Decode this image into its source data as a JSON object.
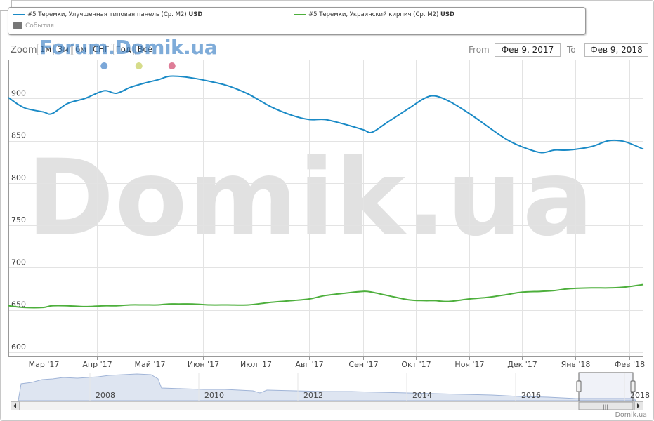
{
  "legend": {
    "series1_label": "#5 Теремки, Улучшенная типовая панель (Ср. М2)",
    "series1_unit": "USD",
    "series2_label": "#5 Теремки, Украинский кирпич (Ср. М2)",
    "series2_unit": "USD",
    "events_label": "События"
  },
  "zoom": {
    "label": "Zoom",
    "buttons": [
      "1м",
      "3м",
      "6м",
      "СНГ",
      "Год",
      "Всё"
    ]
  },
  "watermark_small": "Forum.Domik.ua",
  "watermark_big": "Domik.ua",
  "range": {
    "from_label": "From",
    "from_value": "Фев 9, 2017",
    "to_label": "To",
    "to_value": "Фев 9, 2018"
  },
  "credit": "Domik.ua",
  "colors": {
    "series1": "#1a8ac6",
    "series2": "#4daf3c",
    "grid": "#e3e3e3",
    "event_dots": [
      "#7ba7d8",
      "#d6dc8a",
      "#de7d97"
    ]
  },
  "navigator": {
    "year_labels": [
      "2008",
      "2010",
      "2012",
      "2014",
      "2016",
      "2018"
    ]
  },
  "chart_data": {
    "type": "line",
    "x": [
      "2017-02-09",
      "2017-02-18",
      "2017-03-01",
      "2017-03-06",
      "2017-03-15",
      "2017-03-25",
      "2017-04-05",
      "2017-04-12",
      "2017-04-20",
      "2017-04-28",
      "2017-05-06",
      "2017-05-12",
      "2017-05-18",
      "2017-05-26",
      "2017-06-05",
      "2017-06-15",
      "2017-06-27",
      "2017-07-10",
      "2017-07-22",
      "2017-08-01",
      "2017-08-10",
      "2017-08-22",
      "2017-09-01",
      "2017-09-06",
      "2017-09-15",
      "2017-09-27",
      "2017-10-06",
      "2017-10-12",
      "2017-10-20",
      "2017-11-01",
      "2017-11-12",
      "2017-11-22",
      "2017-12-01",
      "2017-12-12",
      "2017-12-20",
      "2017-12-28",
      "2018-01-10",
      "2018-01-20",
      "2018-01-29",
      "2018-02-09"
    ],
    "series": [
      {
        "name": "#5 Теремки, Улучшенная типовая панель (Ср. М2)",
        "values": [
          901,
          889,
          884,
          882,
          894,
          900,
          909,
          906,
          913,
          918,
          922,
          926,
          926,
          924,
          920,
          915,
          905,
          890,
          880,
          875,
          875,
          869,
          863,
          860,
          872,
          888,
          900,
          903,
          897,
          882,
          866,
          852,
          843,
          836,
          839,
          839,
          843,
          850,
          849,
          840
        ]
      },
      {
        "name": "#5 Теремки, Украинский кирпич (Ср. М2)",
        "values": [
          655,
          653,
          653,
          655,
          655,
          654,
          655,
          655,
          656,
          656,
          656,
          657,
          657,
          657,
          656,
          656,
          656,
          659,
          661,
          663,
          667,
          670,
          672,
          671,
          667,
          662,
          661,
          661,
          660,
          663,
          665,
          668,
          671,
          672,
          673,
          675,
          676,
          676,
          677,
          680
        ]
      }
    ],
    "xlabel": "",
    "ylabel": "",
    "yticks": [
      600,
      650,
      700,
      750,
      800,
      850,
      900
    ],
    "ylim": [
      595,
      945
    ],
    "xticks": [
      {
        "date": "2017-03-01",
        "label": "Мар '17"
      },
      {
        "date": "2017-04-01",
        "label": "Апр '17"
      },
      {
        "date": "2017-05-01",
        "label": "Май '17"
      },
      {
        "date": "2017-06-01",
        "label": "Июн '17"
      },
      {
        "date": "2017-07-01",
        "label": "Июл '17"
      },
      {
        "date": "2017-08-01",
        "label": "Авг '17"
      },
      {
        "date": "2017-09-01",
        "label": "Сен '17"
      },
      {
        "date": "2017-10-01",
        "label": "Окт '17"
      },
      {
        "date": "2017-11-01",
        "label": "Ноя '17"
      },
      {
        "date": "2017-12-01",
        "label": "Дек '17"
      },
      {
        "date": "2018-01-01",
        "label": "Янв '18"
      },
      {
        "date": "2018-02-01",
        "label": "Фев '18"
      }
    ],
    "xrange": [
      "2017-02-09",
      "2018-02-09"
    ],
    "grid": true,
    "legend_position": "top"
  }
}
